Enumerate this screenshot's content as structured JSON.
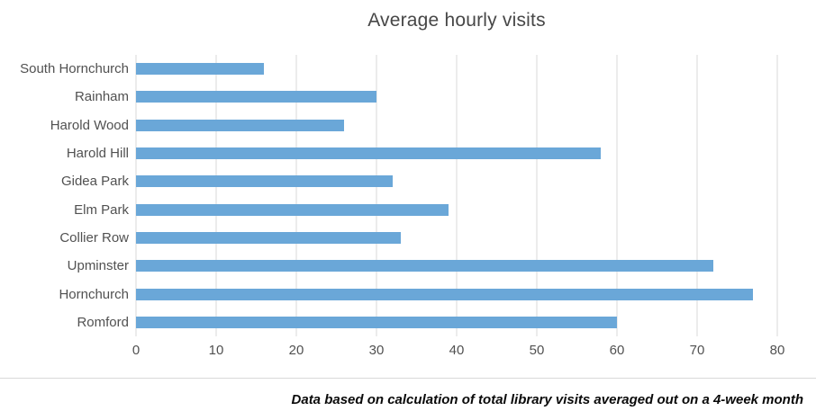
{
  "title": "Average hourly visits",
  "footer": "Data based on calculation of total library visits averaged out on a 4-week month",
  "colors": {
    "bar": "#6aa7d8",
    "gridline": "#d9d9d9",
    "title_text": "#474747",
    "axis_text": "#515151",
    "footer_text": "#0a0a0a",
    "background": "#ffffff"
  },
  "chart_data": {
    "type": "bar",
    "orientation": "horizontal",
    "title": "Average hourly visits",
    "categories": [
      "South Hornchurch",
      "Rainham",
      "Harold Wood",
      "Harold Hill",
      "Gidea Park",
      "Elm Park",
      "Collier Row",
      "Upminster",
      "Hornchurch",
      "Romford"
    ],
    "values": [
      16,
      30,
      26,
      58,
      32,
      39,
      33,
      72,
      77,
      60
    ],
    "xlabel": "",
    "ylabel": "",
    "xlim": [
      0,
      80
    ],
    "xticks": [
      0,
      10,
      20,
      30,
      40,
      50,
      60,
      70,
      80
    ],
    "grid": true,
    "legend": false,
    "annotation": "Data based on calculation of total library visits averaged out on a 4-week month"
  }
}
